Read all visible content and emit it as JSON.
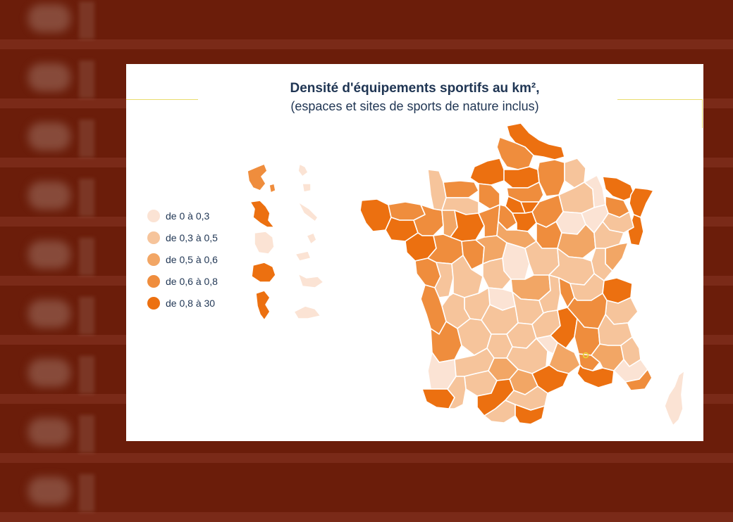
{
  "title": "Densité d'équipements sportifs au km²,",
  "subtitle": "(espaces et sites de sports de nature inclus)",
  "legend": [
    {
      "label": "de 0 à 0,3",
      "color": "#fbe3d4"
    },
    {
      "label": "de 0,3 à 0,5",
      "color": "#f6c49b"
    },
    {
      "label": "de 0,5 à 0,6",
      "color": "#f2a665"
    },
    {
      "label": "de 0,6 à 0,8",
      "color": "#ef8d3d"
    },
    {
      "label": "de 0,8 à 30",
      "color": "#ec7010"
    }
  ],
  "colors": {
    "background": "#6b1d0a",
    "card": "#ffffff",
    "title": "#1f3553",
    "accent_line": "#e9dc6e",
    "border": "#ffffff"
  }
}
